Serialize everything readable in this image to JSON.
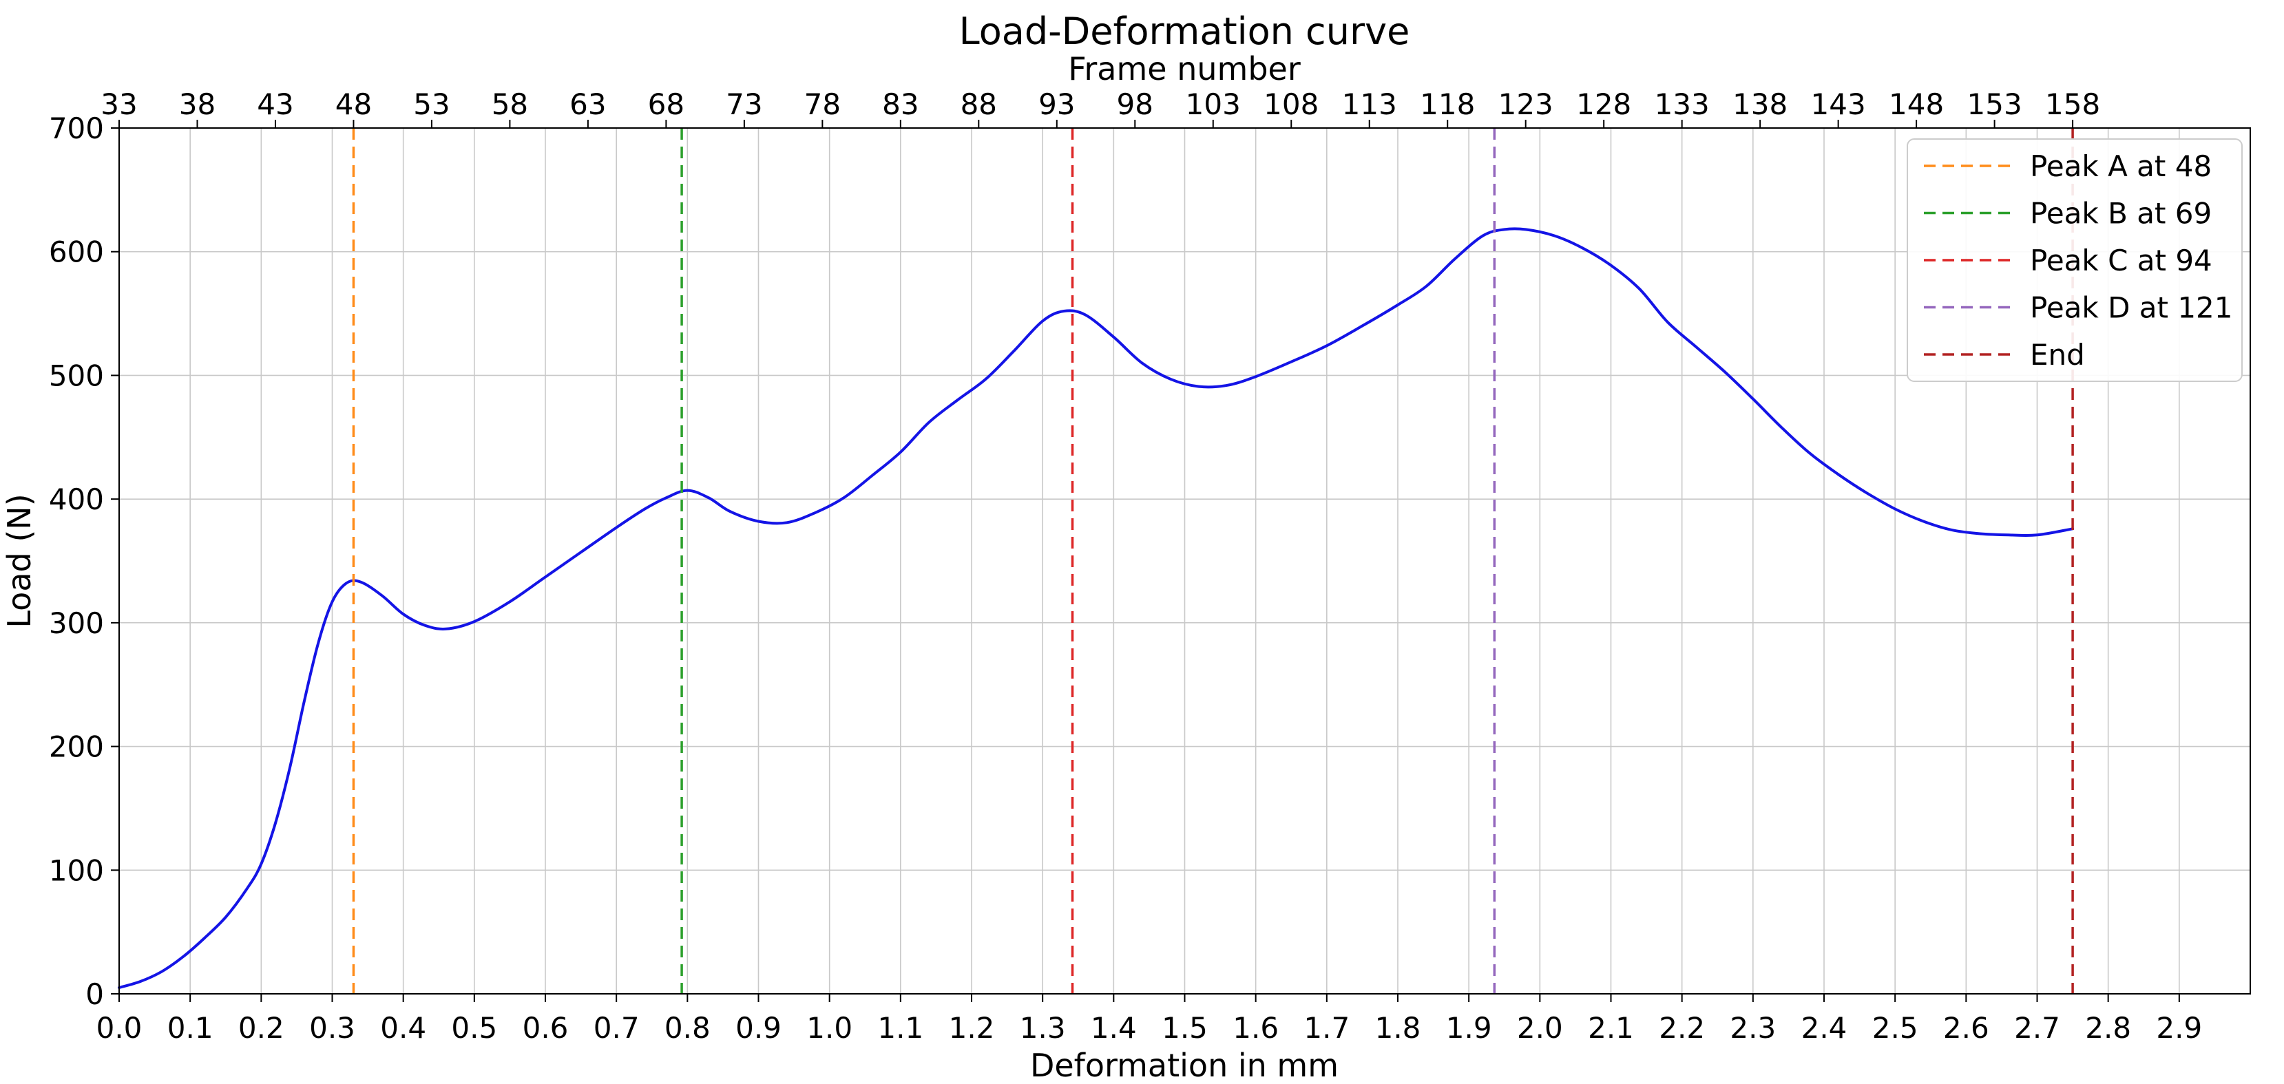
{
  "figure": {
    "background": "#ffffff",
    "border_color": "#000000"
  },
  "chart_data": {
    "type": "line",
    "title": "Load-Deformation curve",
    "xlabel": "Deformation in mm",
    "ylabel": "Load (N)",
    "xlim": [
      0.0,
      3.0
    ],
    "ylim": [
      0,
      700
    ],
    "grid": true,
    "grid_color": "#c9c9c9",
    "x_tick_values": [
      0.0,
      0.1,
      0.2,
      0.3,
      0.4,
      0.5,
      0.6,
      0.7,
      0.8,
      0.9,
      1.0,
      1.1,
      1.2,
      1.3,
      1.4,
      1.5,
      1.6,
      1.7,
      1.8,
      1.9,
      2.0,
      2.1,
      2.2,
      2.3,
      2.4,
      2.5,
      2.6,
      2.7,
      2.8,
      2.9
    ],
    "x_tick_labels": [
      "0.0",
      "0.1",
      "0.2",
      "0.3",
      "0.4",
      "0.5",
      "0.6",
      "0.7",
      "0.8",
      "0.9",
      "1.0",
      "1.1",
      "1.2",
      "1.3",
      "1.4",
      "1.5",
      "1.6",
      "1.7",
      "1.8",
      "1.9",
      "2.0",
      "2.1",
      "2.2",
      "2.3",
      "2.4",
      "2.5",
      "2.6",
      "2.7",
      "2.8",
      "2.9"
    ],
    "y_tick_values": [
      0,
      100,
      200,
      300,
      400,
      500,
      600,
      700
    ],
    "y_tick_labels": [
      "0",
      "100",
      "200",
      "300",
      "400",
      "500",
      "600",
      "700"
    ],
    "frame_axis": {
      "label": "Frame number",
      "tick_values": [
        33,
        38,
        43,
        48,
        53,
        58,
        63,
        68,
        73,
        78,
        83,
        88,
        93,
        98,
        103,
        108,
        113,
        118,
        123,
        128,
        133,
        138,
        143,
        148,
        153,
        158
      ],
      "tick_labels": [
        "33",
        "38",
        "43",
        "48",
        "53",
        "58",
        "63",
        "68",
        "73",
        "78",
        "83",
        "88",
        "93",
        "98",
        "103",
        "108",
        "113",
        "118",
        "123",
        "128",
        "133",
        "138",
        "143",
        "148",
        "153",
        "158"
      ],
      "frame_at_x0": 33,
      "frames_per_mm": 45.4545
    },
    "series": [
      {
        "name": "Load-Deformation",
        "color": "#1414e6",
        "points": [
          [
            0.0,
            5
          ],
          [
            0.03,
            10
          ],
          [
            0.06,
            18
          ],
          [
            0.09,
            30
          ],
          [
            0.12,
            45
          ],
          [
            0.15,
            62
          ],
          [
            0.18,
            85
          ],
          [
            0.2,
            105
          ],
          [
            0.22,
            138
          ],
          [
            0.24,
            182
          ],
          [
            0.26,
            235
          ],
          [
            0.28,
            283
          ],
          [
            0.3,
            317
          ],
          [
            0.32,
            332
          ],
          [
            0.34,
            333
          ],
          [
            0.37,
            322
          ],
          [
            0.4,
            307
          ],
          [
            0.43,
            298
          ],
          [
            0.46,
            295
          ],
          [
            0.5,
            301
          ],
          [
            0.55,
            317
          ],
          [
            0.6,
            337
          ],
          [
            0.65,
            357
          ],
          [
            0.7,
            377
          ],
          [
            0.74,
            392
          ],
          [
            0.77,
            401
          ],
          [
            0.8,
            407
          ],
          [
            0.83,
            401
          ],
          [
            0.86,
            390
          ],
          [
            0.9,
            382
          ],
          [
            0.94,
            381
          ],
          [
            0.98,
            389
          ],
          [
            1.02,
            401
          ],
          [
            1.06,
            419
          ],
          [
            1.1,
            438
          ],
          [
            1.14,
            462
          ],
          [
            1.18,
            480
          ],
          [
            1.22,
            497
          ],
          [
            1.26,
            520
          ],
          [
            1.3,
            544
          ],
          [
            1.33,
            552
          ],
          [
            1.36,
            549
          ],
          [
            1.4,
            531
          ],
          [
            1.44,
            510
          ],
          [
            1.48,
            497
          ],
          [
            1.52,
            491
          ],
          [
            1.56,
            492
          ],
          [
            1.6,
            499
          ],
          [
            1.65,
            511
          ],
          [
            1.7,
            524
          ],
          [
            1.75,
            540
          ],
          [
            1.8,
            557
          ],
          [
            1.84,
            572
          ],
          [
            1.88,
            594
          ],
          [
            1.92,
            613
          ],
          [
            1.95,
            618
          ],
          [
            1.98,
            618
          ],
          [
            2.02,
            613
          ],
          [
            2.06,
            603
          ],
          [
            2.1,
            589
          ],
          [
            2.14,
            570
          ],
          [
            2.18,
            543
          ],
          [
            2.22,
            523
          ],
          [
            2.26,
            503
          ],
          [
            2.3,
            481
          ],
          [
            2.34,
            458
          ],
          [
            2.38,
            437
          ],
          [
            2.42,
            420
          ],
          [
            2.46,
            405
          ],
          [
            2.5,
            392
          ],
          [
            2.54,
            382
          ],
          [
            2.58,
            375
          ],
          [
            2.62,
            372
          ],
          [
            2.66,
            371
          ],
          [
            2.7,
            371
          ],
          [
            2.75,
            376
          ]
        ]
      }
    ],
    "markers": [
      {
        "label": "Peak A at 48",
        "x": 0.33,
        "color": "#ff8c1a"
      },
      {
        "label": "Peak B at 69",
        "x": 0.792,
        "color": "#2ca02c"
      },
      {
        "label": "Peak C at 94",
        "x": 1.342,
        "color": "#dd2626"
      },
      {
        "label": "Peak D at 121",
        "x": 1.936,
        "color": "#9467bd"
      },
      {
        "label": "End",
        "x": 2.75,
        "color": "#b22222"
      }
    ],
    "legend": {
      "position": "upper right",
      "entries": [
        "Peak A at 48",
        "Peak B at 69",
        "Peak C at 94",
        "Peak D at 121",
        "End"
      ]
    }
  }
}
